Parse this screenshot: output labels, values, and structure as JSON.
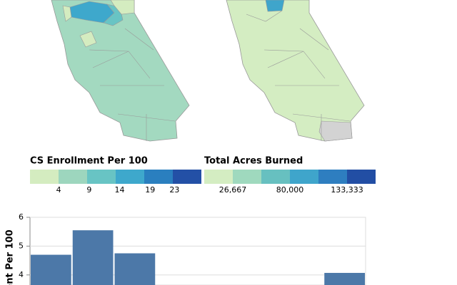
{
  "chart_data": {
    "type": "bar",
    "y_label": "ent Per 100",
    "categories": [
      null,
      null,
      null,
      null,
      null,
      null,
      null,
      null
    ],
    "values": [
      4.7,
      5.55,
      4.75,
      null,
      null,
      null,
      null,
      4.07
    ],
    "color": "#4c78a8",
    "ylim": [
      3.65,
      6
    ],
    "yticks": [
      4,
      5,
      6
    ],
    "grid": true
  },
  "legends": [
    {
      "title": "CS Enrollment Per 100",
      "colors": [
        "#d4ecc0",
        "#9dd6be",
        "#68c4c4",
        "#3ea8cc",
        "#2a7fbf",
        "#2350a6"
      ],
      "xlim": [
        -0.7,
        27.4
      ],
      "ticks": [
        4,
        9,
        14,
        19,
        23
      ]
    },
    {
      "title": "Total Acres Burned",
      "colors": [
        "#d4edc2",
        "#9fd9be",
        "#67c0c0",
        "#3fa5cb",
        "#2e7ec0",
        "#224ea4"
      ],
      "xlim": [
        0,
        160000
      ],
      "ticks": [
        {
          "value": 26667,
          "label": "26,667"
        },
        {
          "value": 80000,
          "label": "80,000"
        },
        {
          "value": 133333,
          "label": "133,333"
        }
      ]
    }
  ]
}
